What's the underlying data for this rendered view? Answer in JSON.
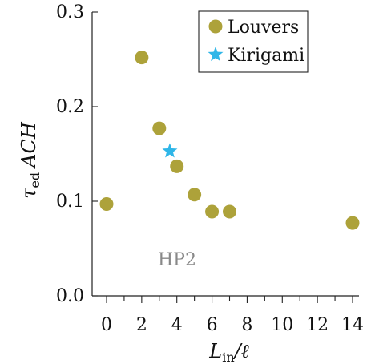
{
  "chart_data": {
    "type": "scatter",
    "xlabel_main": "L",
    "xlabel_sub": "in",
    "xlabel_tail": "/ℓ",
    "ylabel_main": "τ",
    "ylabel_sub": "ed",
    "ylabel_tail": "ACH",
    "xlim": [
      0,
      14
    ],
    "ylim": [
      0,
      0.3
    ],
    "xticks": [
      0,
      2,
      4,
      6,
      8,
      10,
      12,
      14
    ],
    "xtick_labels": [
      "0",
      "2",
      "4",
      "6",
      "8",
      "10",
      "12",
      "14"
    ],
    "yticks": [
      0,
      0.1,
      0.2,
      0.3
    ],
    "ytick_labels": [
      "0.0",
      "0.1",
      "0.2",
      "0.3"
    ],
    "annotation": "HP2",
    "legend_position": "top-right",
    "series": [
      {
        "name": "Louvers",
        "marker": "circle",
        "color": "#ada23a",
        "x": [
          0,
          2,
          3,
          4,
          5,
          6,
          7,
          14
        ],
        "y": [
          0.097,
          0.252,
          0.177,
          0.137,
          0.107,
          0.089,
          0.089,
          0.077
        ]
      },
      {
        "name": "Kirigami",
        "marker": "star",
        "color": "#2fb6e8",
        "x": [
          3.6
        ],
        "y": [
          0.153
        ]
      }
    ]
  }
}
